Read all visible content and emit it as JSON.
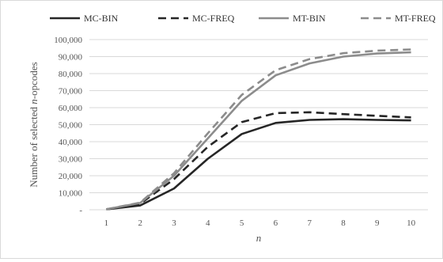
{
  "chart_data": {
    "type": "line",
    "title": "",
    "xlabel": "n",
    "ylabel_parts": [
      "Number of selected ",
      "n",
      "-opcodes"
    ],
    "x": [
      1,
      2,
      3,
      4,
      5,
      6,
      7,
      8,
      9,
      10
    ],
    "x_tick_labels": [
      "1",
      "2",
      "3",
      "4",
      "5",
      "6",
      "7",
      "8",
      "9",
      "10"
    ],
    "ylim": [
      0,
      100000
    ],
    "y_ticks": [
      0,
      10000,
      20000,
      30000,
      40000,
      50000,
      60000,
      70000,
      80000,
      90000,
      100000
    ],
    "y_tick_labels": [
      "-",
      "10,000",
      "20,000",
      "30,000",
      "40,000",
      "50,000",
      "60,000",
      "70,000",
      "80,000",
      "90,000",
      "100,000"
    ],
    "grid": "horizontal",
    "legend_position": "top",
    "series": [
      {
        "name": "MC-BIN",
        "color": "#262626",
        "dash": "solid",
        "values": [
          300,
          2500,
          12500,
          30000,
          44500,
          51000,
          52800,
          53200,
          52800,
          52500
        ]
      },
      {
        "name": "MC-FREQ",
        "color": "#262626",
        "dash": "dashed",
        "values": [
          300,
          3500,
          18000,
          37000,
          51500,
          56800,
          57300,
          56200,
          55200,
          54300
        ]
      },
      {
        "name": "MT-BIN",
        "color": "#8c8c8c",
        "dash": "solid",
        "values": [
          300,
          4000,
          20000,
          42000,
          64000,
          79000,
          86000,
          90000,
          91800,
          92500
        ]
      },
      {
        "name": "MT-FREQ",
        "color": "#8c8c8c",
        "dash": "dashed",
        "values": [
          300,
          4200,
          21500,
          45000,
          67500,
          82000,
          88500,
          92000,
          93500,
          94200
        ]
      }
    ]
  }
}
